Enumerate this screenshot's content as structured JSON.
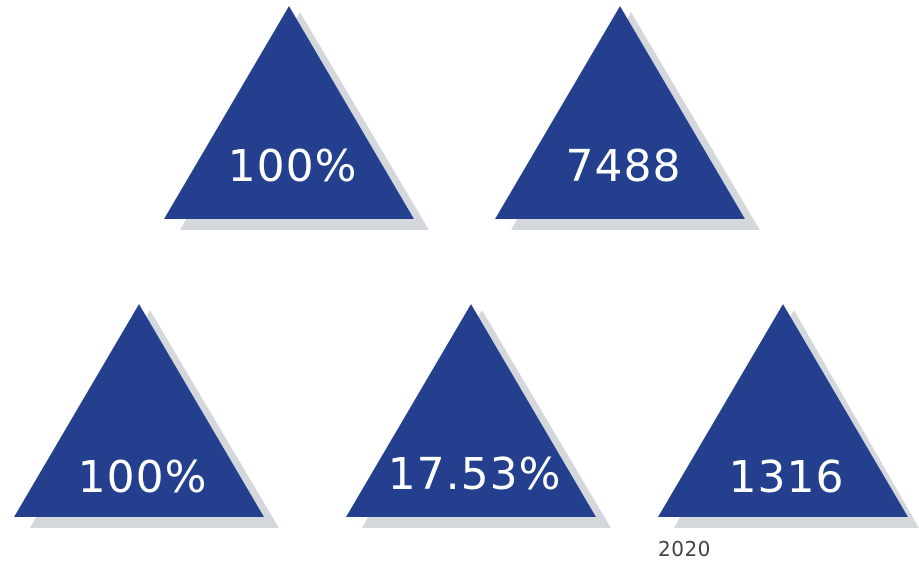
{
  "colors": {
    "triangle_fill": "#233f8e",
    "shadow": "#d4d8dc",
    "label_text": "#ffffff",
    "caption_text": "#444444"
  },
  "tiles": [
    {
      "value": "100%"
    },
    {
      "value": "7488"
    },
    {
      "value": "100%"
    },
    {
      "value": "17.53%"
    },
    {
      "value": "1316"
    }
  ],
  "caption": "2020"
}
